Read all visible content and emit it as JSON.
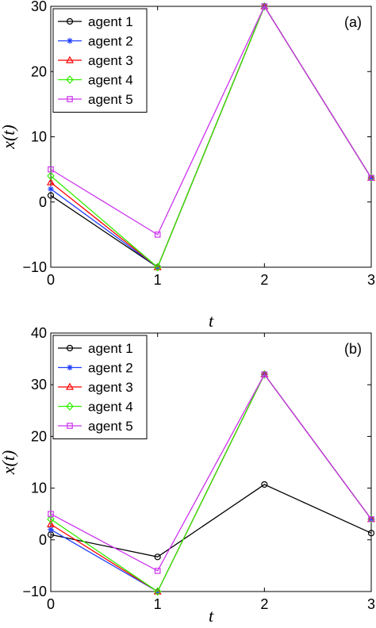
{
  "chart_data": [
    {
      "type": "line",
      "panel_label": "(a)",
      "xlabel": "t",
      "ylabel": "x(t)",
      "xlim": [
        0,
        3
      ],
      "ylim": [
        -10,
        30
      ],
      "xticks": [
        0,
        1,
        2,
        3
      ],
      "yticks": [
        -10,
        0,
        10,
        20,
        30
      ],
      "grid": false,
      "legend_position": "top-left",
      "x": [
        0,
        1,
        2,
        3
      ],
      "series": [
        {
          "name": "agent 1",
          "color": "#000000",
          "marker": "circle",
          "values": [
            1,
            -10,
            30,
            3.7
          ]
        },
        {
          "name": "agent 2",
          "color": "#1f3fff",
          "marker": "star",
          "values": [
            2,
            -10,
            30,
            3.7
          ]
        },
        {
          "name": "agent 3",
          "color": "#ff0000",
          "marker": "triangle",
          "values": [
            3,
            -10,
            30,
            3.7
          ]
        },
        {
          "name": "agent 4",
          "color": "#33ee00",
          "marker": "diamond",
          "values": [
            4,
            -10,
            30,
            3.7
          ]
        },
        {
          "name": "agent 5",
          "color": "#cc33ee",
          "marker": "square",
          "values": [
            5,
            -5,
            30,
            3.7
          ]
        }
      ]
    },
    {
      "type": "line",
      "panel_label": "(b)",
      "xlabel": "t",
      "ylabel": "x(t)",
      "xlim": [
        0,
        3
      ],
      "ylim": [
        -10,
        40
      ],
      "xticks": [
        0,
        1,
        2,
        3
      ],
      "yticks": [
        -10,
        0,
        10,
        20,
        30,
        40
      ],
      "grid": false,
      "legend_position": "top-left",
      "x": [
        0,
        1,
        2,
        3
      ],
      "series": [
        {
          "name": "agent 1",
          "color": "#000000",
          "marker": "circle",
          "values": [
            1,
            -3.3,
            10.7,
            1.3
          ]
        },
        {
          "name": "agent 2",
          "color": "#1f3fff",
          "marker": "star",
          "values": [
            2,
            -10,
            32,
            4
          ]
        },
        {
          "name": "agent 3",
          "color": "#ff0000",
          "marker": "triangle",
          "values": [
            3,
            -10,
            32,
            4
          ]
        },
        {
          "name": "agent 4",
          "color": "#33ee00",
          "marker": "diamond",
          "values": [
            4,
            -10,
            32,
            4
          ]
        },
        {
          "name": "agent 5",
          "color": "#cc33ee",
          "marker": "square",
          "values": [
            5,
            -6,
            32,
            4
          ]
        }
      ]
    }
  ]
}
